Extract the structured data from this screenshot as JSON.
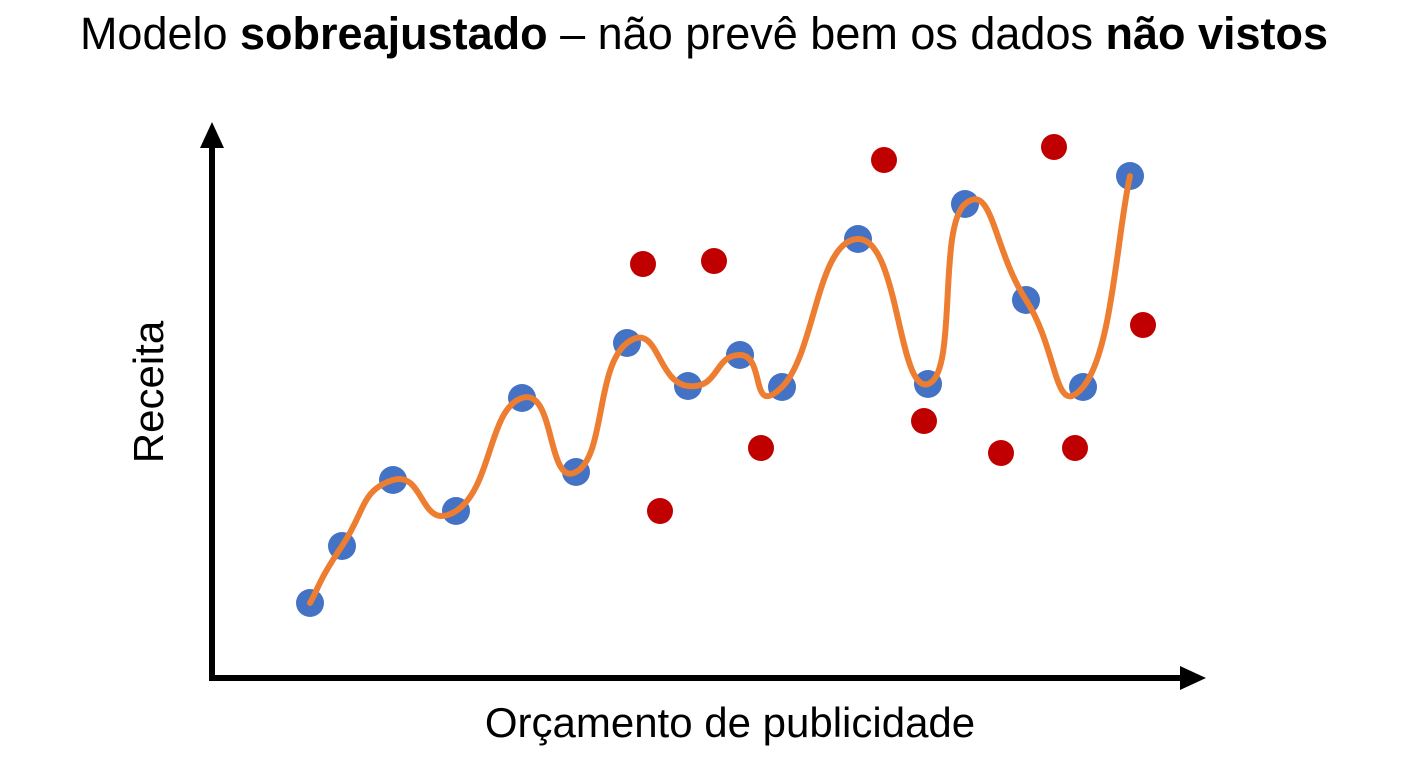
{
  "title": {
    "parts": [
      "Modelo ",
      "sobreajustado",
      " – não prevê bem os dados ",
      "não vistos"
    ]
  },
  "axes": {
    "y_label": "Receita",
    "x_label": "Orçamento de publicidade"
  }
}
